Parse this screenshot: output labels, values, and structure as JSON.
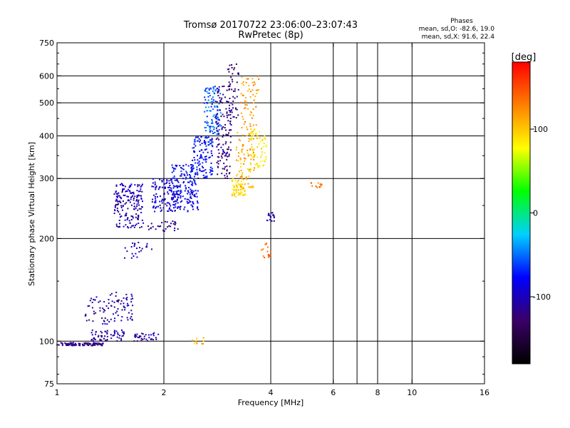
{
  "chart_data": {
    "type": "scatter",
    "title": "Tromsø 20170722 23:06:00–23:07:43",
    "subtitle": "RwPretec (8p)",
    "xlabel": "Frequency [MHz]",
    "ylabel": "Stationary phase Virtual Height [km]",
    "x_scale": "log",
    "y_scale": "log",
    "xlim": [
      1,
      16
    ],
    "ylim": [
      75,
      750
    ],
    "x_ticks": [
      1,
      2,
      4,
      6,
      8,
      10,
      16
    ],
    "x_gridlines": [
      2,
      4,
      6,
      7,
      8,
      10
    ],
    "y_ticks": [
      75,
      100,
      200,
      300,
      400,
      500,
      600,
      750
    ],
    "grid": true,
    "stats": {
      "heading": "Phases",
      "line_o": "mean, sd,O: -82.6, 19.0",
      "line_x": "mean, sd,X:  91.6, 22.4"
    },
    "colorbar": {
      "label": "[deg]",
      "range": [
        -180,
        180
      ],
      "ticks": [
        100,
        0,
        -100
      ],
      "colors": [
        "#000000",
        "#3a0066",
        "#0000ff",
        "#00d0ff",
        "#00ff00",
        "#ffff00",
        "#ff8000",
        "#ff0000"
      ]
    },
    "series_groups": [
      {
        "x": [
          1.0,
          1.35
        ],
        "y": [
          97,
          99
        ],
        "phase": -120,
        "n": 100
      },
      {
        "x": [
          1.25,
          1.55
        ],
        "y": [
          100,
          108
        ],
        "phase": -110,
        "n": 60
      },
      {
        "x": [
          1.2,
          1.4
        ],
        "y": [
          112,
          135
        ],
        "phase": -110,
        "n": 40
      },
      {
        "x": [
          1.4,
          1.65
        ],
        "y": [
          114,
          140
        ],
        "phase": -108,
        "n": 55
      },
      {
        "x": [
          1.65,
          1.95
        ],
        "y": [
          100,
          106
        ],
        "phase": -112,
        "n": 35
      },
      {
        "x": [
          1.45,
          1.75
        ],
        "y": [
          250,
          290
        ],
        "phase": -100,
        "n": 90
      },
      {
        "x": [
          1.45,
          1.75
        ],
        "y": [
          215,
          260
        ],
        "phase": -108,
        "n": 90
      },
      {
        "x": [
          1.55,
          1.85
        ],
        "y": [
          175,
          195
        ],
        "phase": -102,
        "n": 25
      },
      {
        "x": [
          1.85,
          2.2
        ],
        "y": [
          240,
          300
        ],
        "phase": -92,
        "n": 120
      },
      {
        "x": [
          1.8,
          2.2
        ],
        "y": [
          210,
          225
        ],
        "phase": -112,
        "n": 30
      },
      {
        "x": [
          2.1,
          2.5
        ],
        "y": [
          270,
          330
        ],
        "phase": -80,
        "n": 120
      },
      {
        "x": [
          2.1,
          2.5
        ],
        "y": [
          240,
          270
        ],
        "phase": -90,
        "n": 60
      },
      {
        "x": [
          2.4,
          2.75
        ],
        "y": [
          300,
          400
        ],
        "phase": -75,
        "n": 120
      },
      {
        "x": [
          2.6,
          2.9
        ],
        "y": [
          400,
          560
        ],
        "phase": -55,
        "n": 110
      },
      {
        "x": [
          2.8,
          3.1
        ],
        "y": [
          300,
          560
        ],
        "phase": -120,
        "n": 130
      },
      {
        "x": [
          3.0,
          3.25
        ],
        "y": [
          450,
          650
        ],
        "phase": -125,
        "n": 50
      },
      {
        "x": [
          3.1,
          3.4
        ],
        "y": [
          265,
          300
        ],
        "phase": 95,
        "n": 60
      },
      {
        "x": [
          3.2,
          3.6
        ],
        "y": [
          280,
          420
        ],
        "phase": 110,
        "n": 90
      },
      {
        "x": [
          3.3,
          3.7
        ],
        "y": [
          420,
          600
        ],
        "phase": 120,
        "n": 60
      },
      {
        "x": [
          3.5,
          3.9
        ],
        "y": [
          320,
          420
        ],
        "phase": 85,
        "n": 60
      },
      {
        "x": [
          3.9,
          4.1
        ],
        "y": [
          225,
          240
        ],
        "phase": -110,
        "n": 20
      },
      {
        "x": [
          3.75,
          4.0
        ],
        "y": [
          175,
          195
        ],
        "phase": 140,
        "n": 15
      },
      {
        "x": [
          5.2,
          5.6
        ],
        "y": [
          282,
          292
        ],
        "phase": 135,
        "n": 12
      },
      {
        "x": [
          2.4,
          2.6
        ],
        "y": [
          98,
          104
        ],
        "phase": 105,
        "n": 12
      }
    ]
  }
}
